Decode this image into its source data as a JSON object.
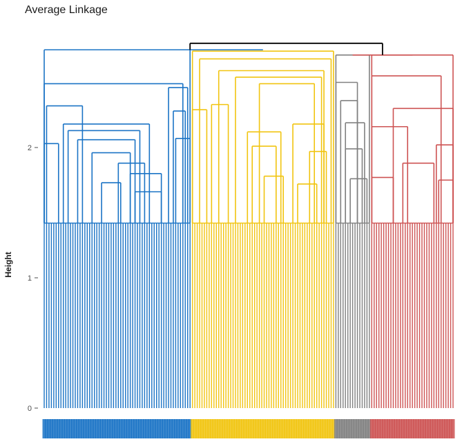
{
  "chart_data": {
    "type": "dendrogram",
    "title": "Average Linkage",
    "ylabel": "Height",
    "xlabel": "",
    "ylim": [
      0,
      2.85
    ],
    "yticks": [
      0,
      1,
      2
    ],
    "grid": false,
    "legend": "none",
    "leaf_labels_readable": false,
    "root": {
      "height": 2.8,
      "color": "#000000"
    },
    "clusters": [
      {
        "color": "#1a73c5",
        "leaf_count": 62,
        "leaf_base_height": 1.42,
        "leaf_range": [
          0,
          61
        ],
        "merges": [
          {
            "height": 2.75,
            "span": [
              0,
              61
            ]
          },
          {
            "height": 2.49,
            "span": [
              0,
              58
            ]
          },
          {
            "height": 2.46,
            "span": [
              52,
              60
            ]
          },
          {
            "height": 2.32,
            "span": [
              1,
              16
            ]
          },
          {
            "height": 2.18,
            "span": [
              8,
              44
            ]
          },
          {
            "height": 2.13,
            "span": [
              10,
              40
            ]
          },
          {
            "height": 2.03,
            "span": [
              0,
              6
            ]
          },
          {
            "height": 2.06,
            "span": [
              14,
              38
            ]
          },
          {
            "height": 1.96,
            "span": [
              20,
              36
            ]
          },
          {
            "height": 1.88,
            "span": [
              31,
              42
            ]
          },
          {
            "height": 1.8,
            "span": [
              36,
              49
            ]
          },
          {
            "height": 1.73,
            "span": [
              24,
              32
            ]
          },
          {
            "height": 1.66,
            "span": [
              38,
              49
            ]
          },
          {
            "height": 2.28,
            "span": [
              54,
              59
            ]
          },
          {
            "height": 2.07,
            "span": [
              55,
              61
            ]
          }
        ]
      },
      {
        "color": "#f1c40f",
        "leaf_count": 60,
        "leaf_base_height": 1.42,
        "leaf_range": [
          62,
          121
        ],
        "merges": [
          {
            "height": 2.74,
            "span": [
              62,
              121
            ]
          },
          {
            "height": 2.68,
            "span": [
              65,
              120
            ]
          },
          {
            "height": 2.59,
            "span": [
              73,
              117
            ]
          },
          {
            "height": 2.54,
            "span": [
              80,
              116
            ]
          },
          {
            "height": 2.49,
            "span": [
              90,
              113
            ]
          },
          {
            "height": 2.29,
            "span": [
              62,
              68
            ]
          },
          {
            "height": 2.33,
            "span": [
              70,
              77
            ]
          },
          {
            "height": 2.18,
            "span": [
              104,
              117
            ]
          },
          {
            "height": 2.12,
            "span": [
              85,
              99
            ]
          },
          {
            "height": 2.01,
            "span": [
              87,
              97
            ]
          },
          {
            "height": 1.78,
            "span": [
              92,
              100
            ]
          },
          {
            "height": 1.97,
            "span": [
              111,
              118
            ]
          },
          {
            "height": 1.72,
            "span": [
              106,
              114
            ]
          }
        ]
      },
      {
        "color": "#808080",
        "leaf_count": 15,
        "leaf_base_height": 1.42,
        "leaf_range": [
          122,
          136
        ],
        "merges": [
          {
            "height": 2.71,
            "span": [
              122,
              136
            ]
          },
          {
            "height": 2.5,
            "span": [
              122,
              131
            ]
          },
          {
            "height": 2.36,
            "span": [
              124,
              131
            ]
          },
          {
            "height": 2.19,
            "span": [
              126,
              134
            ]
          },
          {
            "height": 1.99,
            "span": [
              126,
              133
            ]
          },
          {
            "height": 1.76,
            "span": [
              128,
              135
            ]
          }
        ]
      },
      {
        "color": "#cd5252",
        "leaf_count": 35,
        "leaf_base_height": 1.42,
        "leaf_range": [
          137,
          171
        ],
        "merges": [
          {
            "height": 2.71,
            "span": [
              137,
              171
            ]
          },
          {
            "height": 2.55,
            "span": [
              137,
              166
            ]
          },
          {
            "height": 2.3,
            "span": [
              146,
              171
            ]
          },
          {
            "height": 2.16,
            "span": [
              137,
              152
            ]
          },
          {
            "height": 1.88,
            "span": [
              150,
              163
            ]
          },
          {
            "height": 2.02,
            "span": [
              164,
              171
            ]
          },
          {
            "height": 1.77,
            "span": [
              137,
              146
            ]
          },
          {
            "height": 1.75,
            "span": [
              165,
              171
            ]
          }
        ]
      }
    ]
  }
}
